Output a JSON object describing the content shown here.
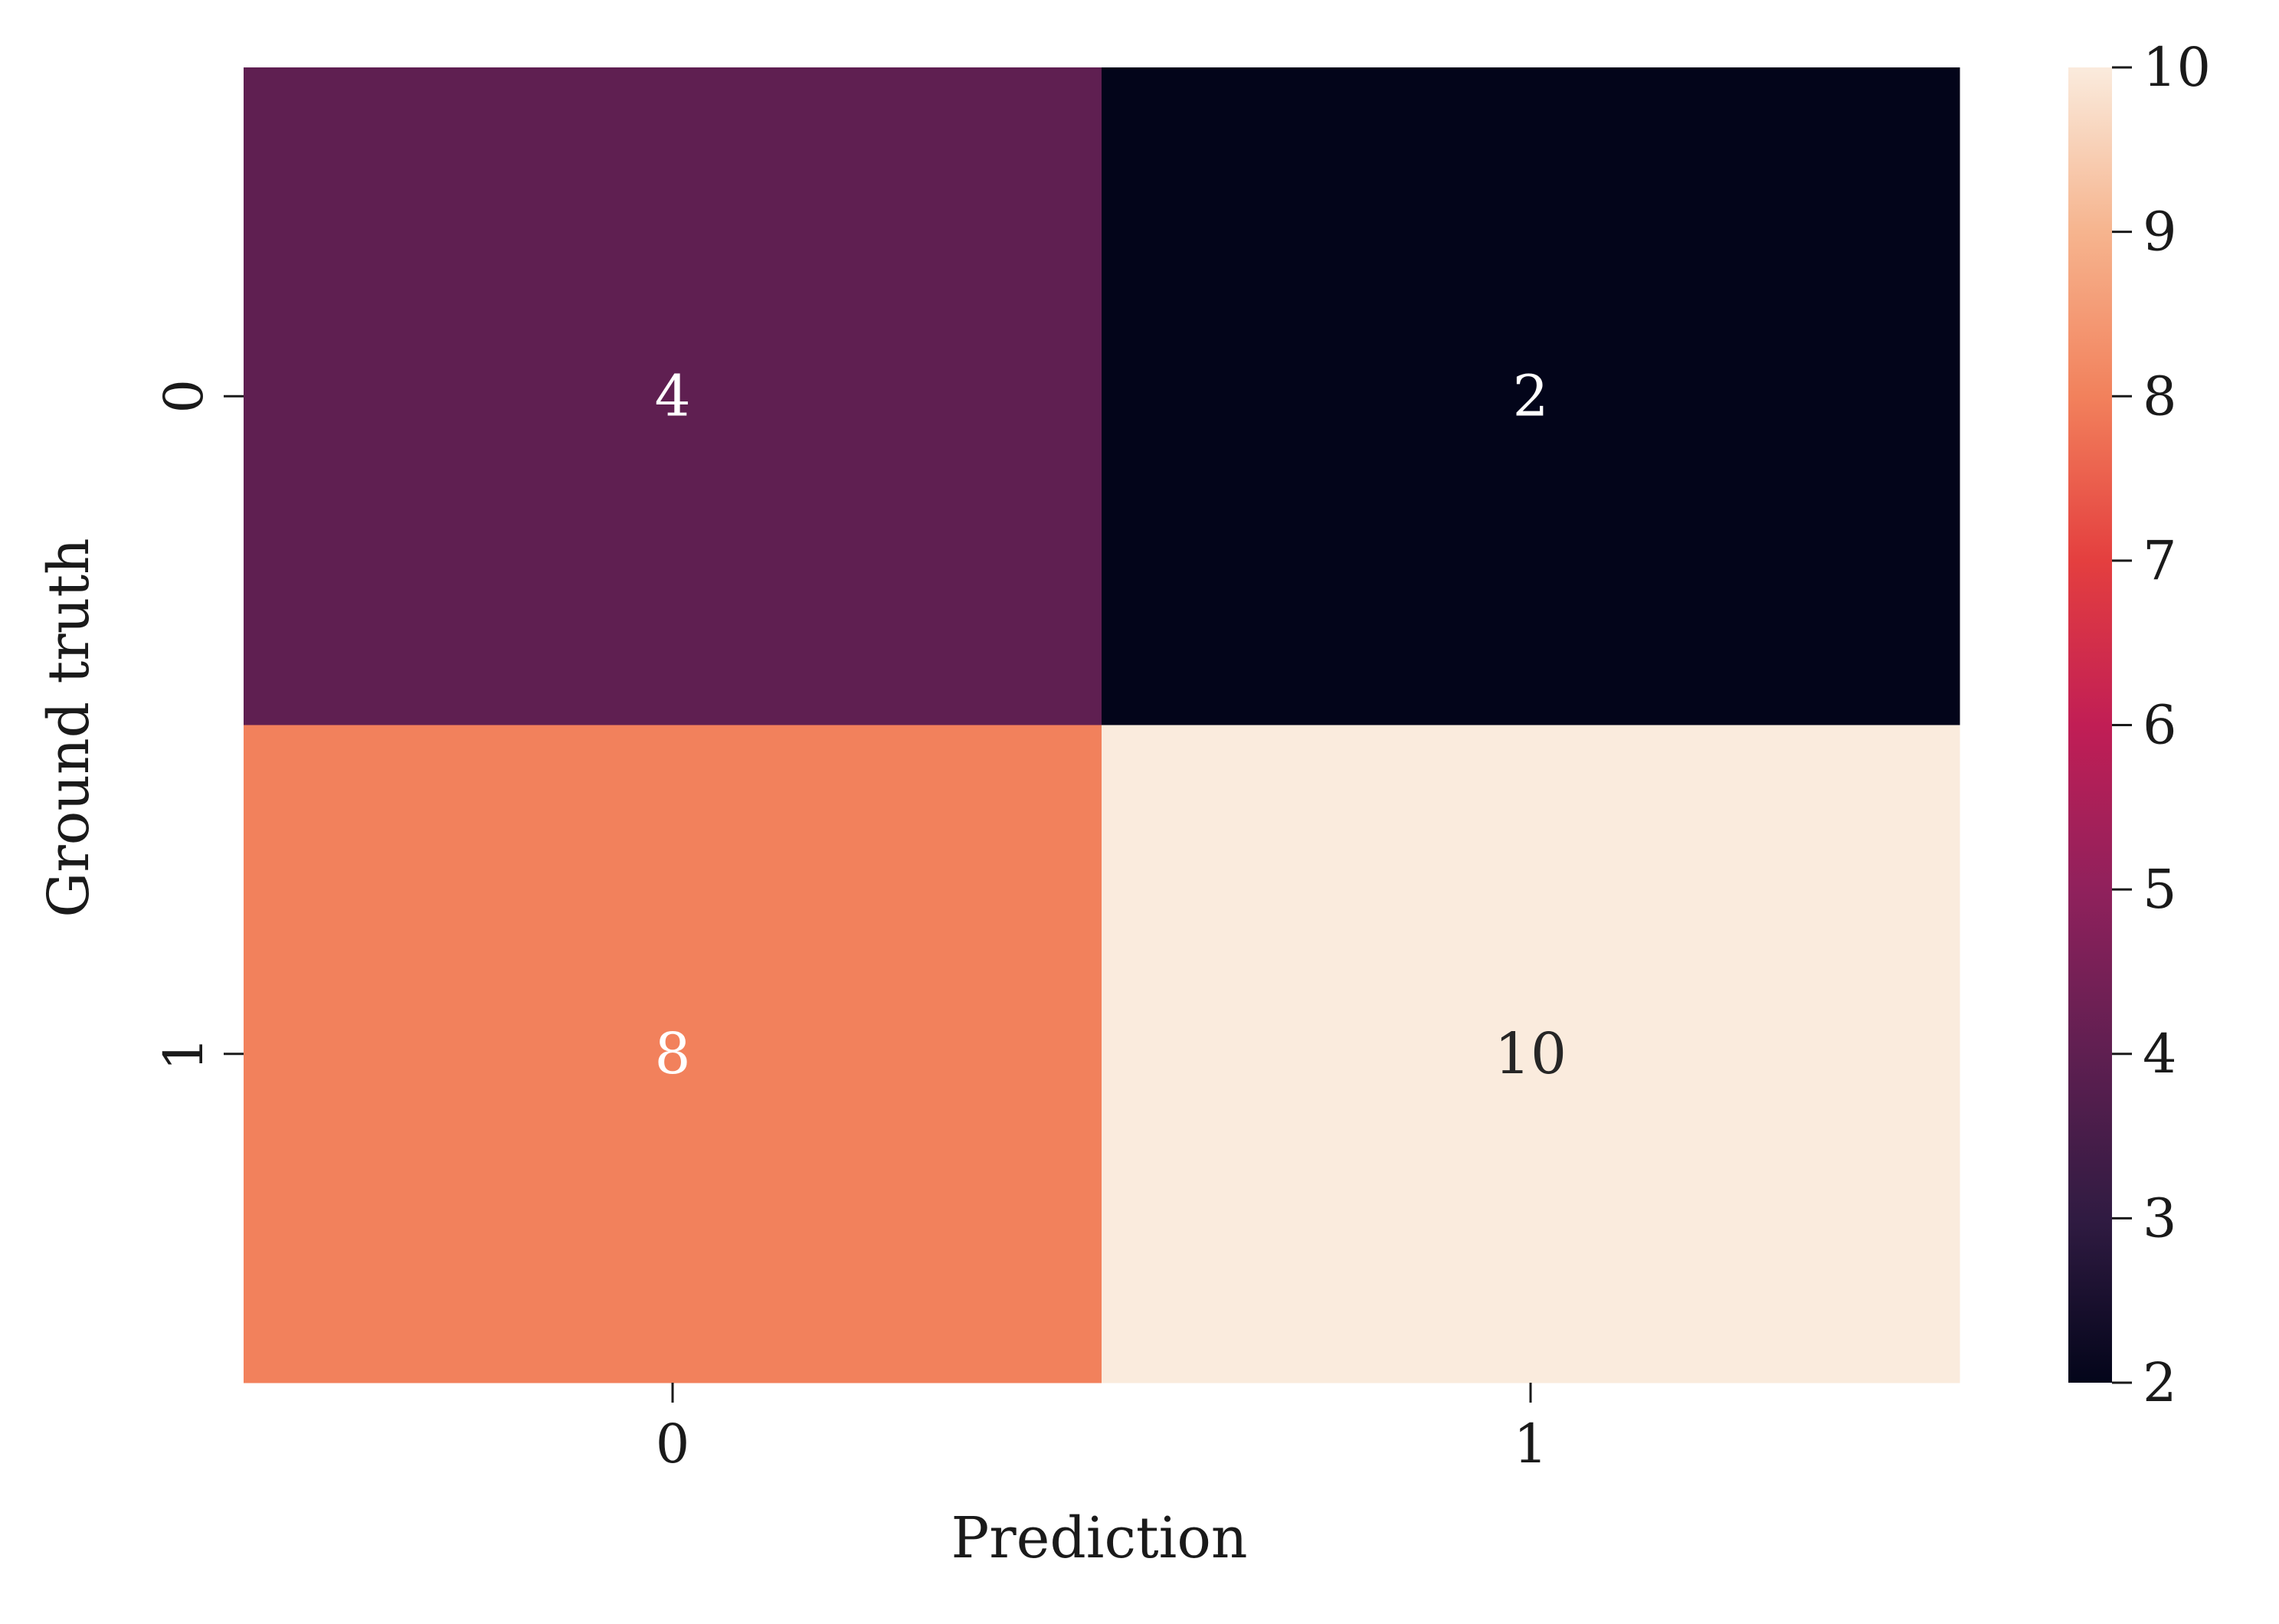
{
  "chart_data": {
    "type": "heatmap",
    "title": "",
    "xlabel": "Prediction",
    "ylabel": "Ground truth",
    "x_categories": [
      "0",
      "1"
    ],
    "y_categories": [
      "0",
      "1"
    ],
    "values": [
      [
        4,
        2
      ],
      [
        8,
        10
      ]
    ],
    "annotations": [
      [
        "4",
        "2"
      ],
      [
        "8",
        "10"
      ]
    ],
    "colorbar": {
      "min": 2,
      "max": 10,
      "ticks": [
        2,
        3,
        4,
        5,
        6,
        7,
        8,
        9,
        10
      ],
      "tick_labels": [
        "2",
        "3",
        "4",
        "5",
        "6",
        "7",
        "8",
        "9",
        "10"
      ],
      "placement": "right"
    },
    "colormap": {
      "name": "rocket",
      "stops": [
        "#03051a",
        "#301b42",
        "#5f1f51",
        "#90215c",
        "#c11e55",
        "#e43f3f",
        "#f2815c",
        "#f6b48e",
        "#faebdd"
      ]
    },
    "grid": false,
    "legend": "none"
  }
}
